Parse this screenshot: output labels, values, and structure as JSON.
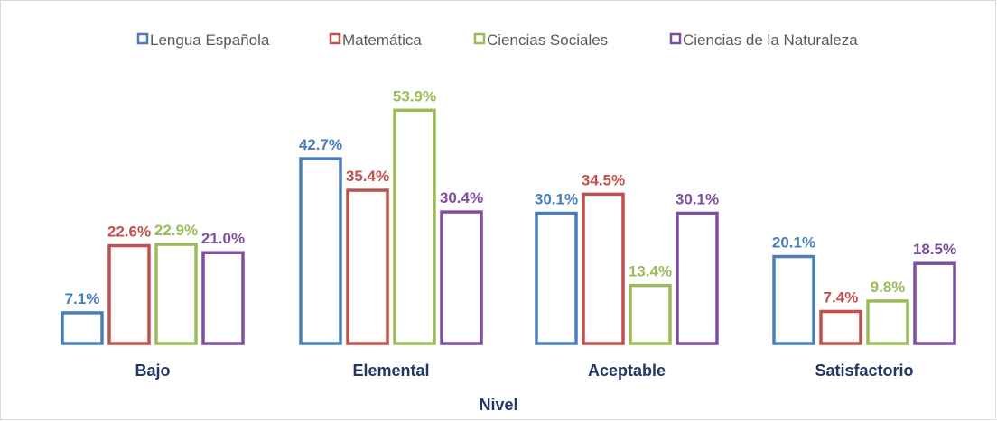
{
  "chart_data": {
    "type": "bar",
    "title": "",
    "xlabel": "Nivel",
    "ylabel": "",
    "categories": [
      "Bajo",
      "Elemental",
      "Aceptable",
      "Satisfactorio"
    ],
    "series": [
      {
        "name": "Lengua Española",
        "color": "#4a7ebb",
        "values": [
          7.1,
          42.7,
          30.1,
          20.1
        ],
        "labels": [
          "7.1%",
          "42.7%",
          "30.1%",
          "20.1%"
        ]
      },
      {
        "name": "Matemática",
        "color": "#c0504d",
        "values": [
          22.6,
          35.4,
          34.5,
          7.4
        ],
        "labels": [
          "22.6%",
          "35.4%",
          "34.5%",
          "7.4%"
        ]
      },
      {
        "name": "Ciencias Sociales",
        "color": "#9bbb59",
        "values": [
          22.9,
          53.9,
          13.4,
          9.8
        ],
        "labels": [
          "22.9%",
          "53.9%",
          "13.4%",
          "9.8%"
        ]
      },
      {
        "name": "Ciencias de la Naturaleza",
        "color": "#7e4f9e",
        "values": [
          21.0,
          30.4,
          30.1,
          18.5
        ],
        "labels": [
          "21.0%",
          "30.4%",
          "30.1%",
          "18.5%"
        ]
      }
    ],
    "ylim": [
      0,
      60
    ],
    "grid": false,
    "legend_position": "top"
  }
}
